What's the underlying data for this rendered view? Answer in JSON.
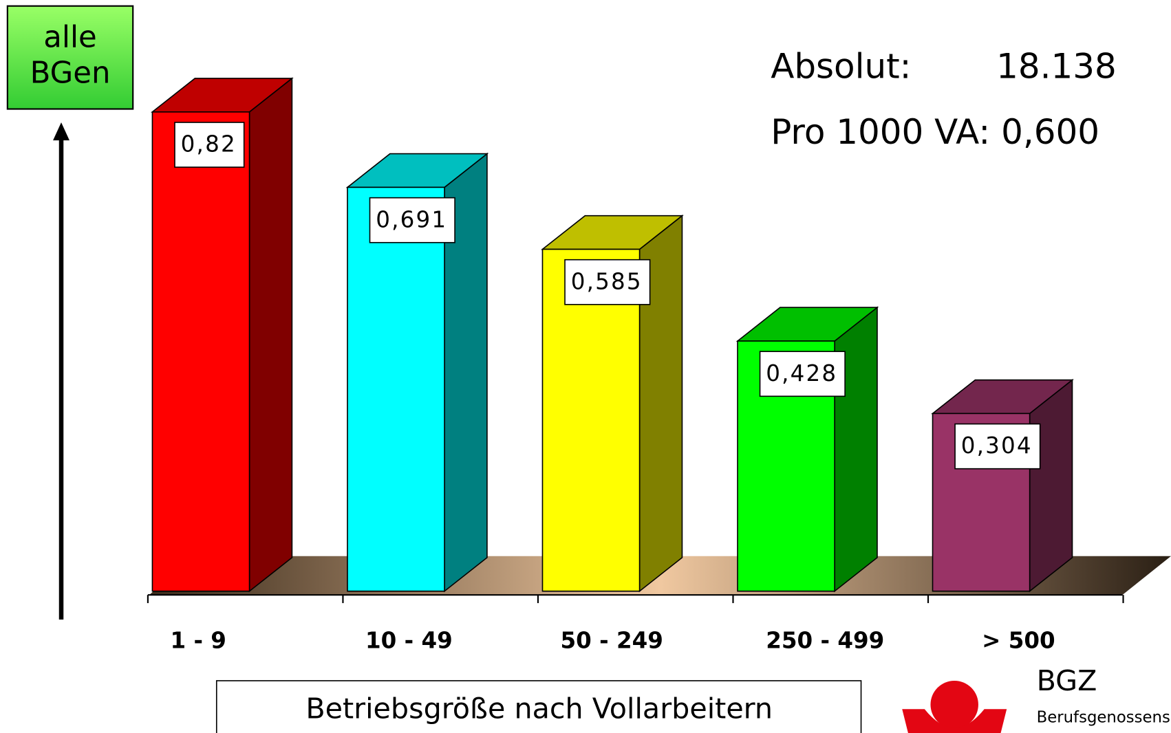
{
  "chart_data": {
    "type": "bar3d",
    "ylabel": "alle BGen",
    "xlabel": "Betriebsgröße nach Vollarbeitern",
    "annotations": [
      "Absolut:",
      "18.138",
      "Pro 1000 VA: 0,600"
    ],
    "categories": [
      "1 - 9",
      "10 - 49",
      "50 - 249",
      "250 - 499",
      "> 500"
    ],
    "values": [
      0.82,
      0.691,
      0.585,
      0.428,
      0.304
    ],
    "value_labels": [
      "0,82",
      "0,691",
      "0,585",
      "0,428",
      "0,304"
    ],
    "colors": [
      "#ff0000",
      "#00ffff",
      "#ffff00",
      "#00ff00",
      "#993366"
    ]
  },
  "logo": {
    "title": "BGZ",
    "subtitle": "Berufsgenossensc"
  }
}
